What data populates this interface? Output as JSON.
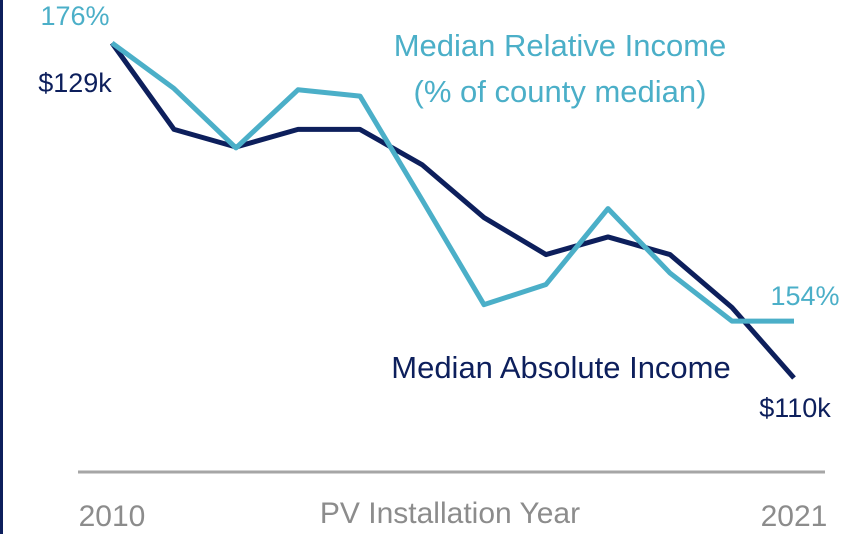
{
  "chart_data": {
    "type": "line",
    "x_label": "PV Installation Year",
    "categories": [
      "2010",
      null,
      null,
      null,
      null,
      null,
      null,
      null,
      null,
      null,
      null,
      "2021"
    ],
    "ylim": [
      110,
      129
    ],
    "y2lim": [
      149.5,
      176
    ],
    "series": [
      {
        "name": "Median Absolute Income",
        "color": "#0d1f5c",
        "values": [
          129,
          124.1,
          123.1,
          124.1,
          124.1,
          122.1,
          119.1,
          117.0,
          118.0,
          117.0,
          114.0,
          110
        ],
        "value_labels": [
          "$129k",
          null,
          null,
          null,
          null,
          null,
          null,
          null,
          null,
          null,
          null,
          "$110k"
        ]
      },
      {
        "name": "Median Relative Income",
        "name_note": "(% of county median)",
        "color": "#4bafc8",
        "axis": "y2",
        "values": [
          176,
          172.4,
          167.7,
          172.3,
          171.8,
          163.6,
          155.3,
          156.9,
          162.9,
          157.8,
          154,
          154
        ],
        "value_labels": [
          "176%",
          null,
          null,
          null,
          null,
          null,
          null,
          null,
          null,
          null,
          null,
          "154%"
        ]
      }
    ]
  }
}
